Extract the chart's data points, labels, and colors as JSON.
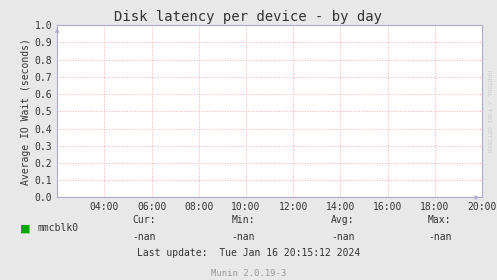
{
  "title": "Disk latency per device - by day",
  "ylabel": "Average IO Wait (seconds)",
  "bg_color": "#e8e8e8",
  "plot_bg_color": "#ffffff",
  "grid_color": "#ffaaaa",
  "border_color": "#aaaacc",
  "right_bg_color": "#e8e8e8",
  "x_ticks": [
    "04:00",
    "06:00",
    "08:00",
    "10:00",
    "12:00",
    "14:00",
    "16:00",
    "18:00",
    "20:00"
  ],
  "x_tick_values": [
    4,
    6,
    8,
    10,
    12,
    14,
    16,
    18,
    20
  ],
  "xlim": [
    2,
    20
  ],
  "ylim": [
    0.0,
    1.0
  ],
  "y_ticks": [
    0.0,
    0.1,
    0.2,
    0.3,
    0.4,
    0.5,
    0.6,
    0.7,
    0.8,
    0.9,
    1.0
  ],
  "legend_label": "mmcblk0",
  "legend_color": "#00aa00",
  "cur_label": "Cur:",
  "cur_val": "-nan",
  "min_label": "Min:",
  "min_val": "-nan",
  "avg_label": "Avg:",
  "avg_val": "-nan",
  "max_label": "Max:",
  "max_val": "-nan",
  "last_update": "Last update:  Tue Jan 16 20:15:12 2024",
  "munin_label": "Munin 2.0.19-3",
  "rrdtool_label": "RRDTOOL / TOBI OETIKER",
  "title_fontsize": 10,
  "axis_fontsize": 7,
  "tick_fontsize": 7,
  "annotation_fontsize": 7,
  "footer_fontsize": 7,
  "munin_fontsize": 6.5
}
